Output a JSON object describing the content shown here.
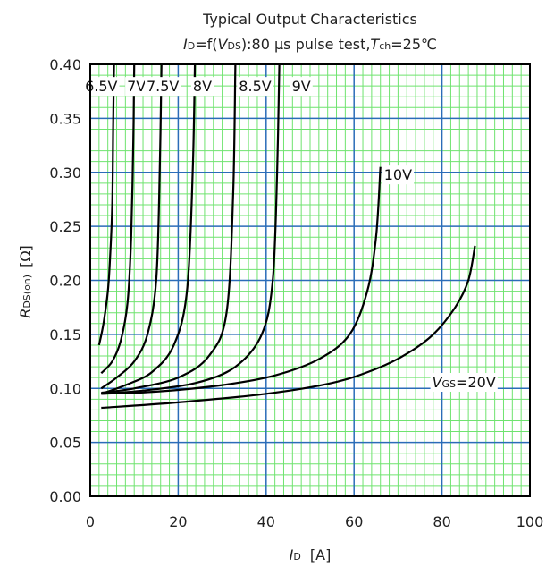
{
  "chart_data": {
    "type": "line",
    "title": "Typical Output Characteristics",
    "subtitle": {
      "id_sym": "I",
      "id_sub": "D",
      "mid1": "=f(",
      "v_sym": "V",
      "v_sub": "DS",
      "mid2": "):80 μs pulse test,",
      "t_sym": "T",
      "t_sub": "ch",
      "tail": "=25℃"
    },
    "xlabel": {
      "sym": "I",
      "sub": "D",
      "unit": "[A]"
    },
    "ylabel": {
      "sym": "R",
      "sub": "DS(on)",
      "unit": "[Ω]"
    },
    "xlim": [
      0,
      100
    ],
    "ylim": [
      0,
      0.4
    ],
    "x_ticks": [
      0,
      20,
      40,
      60,
      80,
      100
    ],
    "x_tick_labels": [
      "0",
      "20",
      "40",
      "60",
      "80",
      "100"
    ],
    "y_ticks": [
      0,
      0.05,
      0.1,
      0.15,
      0.2,
      0.25,
      0.3,
      0.35,
      0.4
    ],
    "y_tick_labels": [
      "0.00",
      "0.05",
      "0.10",
      "0.15",
      "0.20",
      "0.25",
      "0.30",
      "0.35",
      "0.40"
    ],
    "grid": {
      "major": true,
      "minor": true,
      "major_color": "#2b6cb8",
      "minor_color": "#6fe36f"
    },
    "line_color": "#000000",
    "series": [
      {
        "name": "6.5V",
        "x": [
          2.0,
          3.0,
          4.0,
          4.5,
          5.0,
          5.2,
          5.4
        ],
        "y": [
          0.14,
          0.16,
          0.19,
          0.22,
          0.27,
          0.34,
          0.4
        ]
      },
      {
        "name": "7V",
        "x": [
          2.5,
          5.0,
          7.0,
          8.5,
          9.3,
          9.8,
          10.0
        ],
        "y": [
          0.114,
          0.125,
          0.145,
          0.18,
          0.24,
          0.33,
          0.4
        ]
      },
      {
        "name": "7.5V",
        "x": [
          2.5,
          6.0,
          10.0,
          13.0,
          15.0,
          15.8,
          16.2
        ],
        "y": [
          0.1,
          0.11,
          0.125,
          0.15,
          0.2,
          0.3,
          0.4
        ]
      },
      {
        "name": "8V",
        "x": [
          2.5,
          8.0,
          14.0,
          19.0,
          22.0,
          23.3,
          23.8
        ],
        "y": [
          0.095,
          0.103,
          0.115,
          0.14,
          0.19,
          0.3,
          0.4
        ]
      },
      {
        "name": "8.5V",
        "x": [
          2.5,
          10.0,
          20.0,
          27.0,
          31.0,
          32.5,
          33.0
        ],
        "y": [
          0.096,
          0.1,
          0.11,
          0.13,
          0.17,
          0.28,
          0.4
        ]
      },
      {
        "name": "9V",
        "x": [
          2.5,
          12.0,
          24.0,
          33.0,
          39.0,
          41.5,
          42.5,
          43.0
        ],
        "y": [
          0.095,
          0.098,
          0.105,
          0.12,
          0.15,
          0.2,
          0.3,
          0.4
        ]
      },
      {
        "name": "10V",
        "x": [
          2.5,
          15.0,
          30.0,
          42.0,
          52.0,
          59.0,
          63.0,
          65.0,
          66.0
        ],
        "y": [
          0.095,
          0.097,
          0.103,
          0.112,
          0.127,
          0.15,
          0.19,
          0.24,
          0.305
        ]
      },
      {
        "name": "VGS=20V",
        "x": [
          2.5,
          20.0,
          40.0,
          55.0,
          65.0,
          72.0,
          78.0,
          83.0,
          86.0,
          87.5
        ],
        "y": [
          0.082,
          0.087,
          0.095,
          0.105,
          0.118,
          0.132,
          0.15,
          0.175,
          0.2,
          0.232
        ]
      }
    ],
    "curve_labels": [
      {
        "text": "6.5V",
        "x": 2.5,
        "y": 0.38
      },
      {
        "text": "7V",
        "x": 10.5,
        "y": 0.38
      },
      {
        "text": "7.5V",
        "x": 16.5,
        "y": 0.38
      },
      {
        "text": "8V",
        "x": 25.5,
        "y": 0.38
      },
      {
        "text": "8.5V",
        "x": 37.5,
        "y": 0.38
      },
      {
        "text": "9V",
        "x": 48.0,
        "y": 0.38
      },
      {
        "text": "10V",
        "x": 70.0,
        "y": 0.298
      },
      {
        "sym": "V",
        "sub": "GS",
        "text": "=20V",
        "x": 85.0,
        "y": 0.106
      }
    ]
  }
}
